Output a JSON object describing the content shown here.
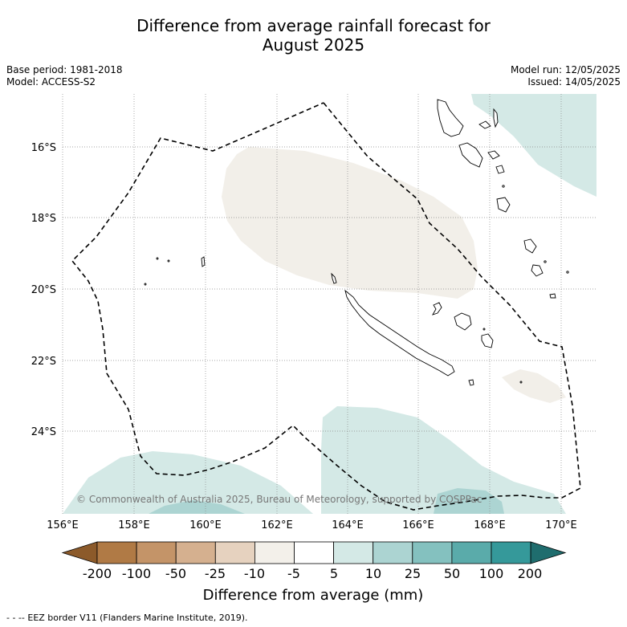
{
  "title": {
    "line1": "Difference from average rainfall forecast for",
    "line2": "August 2025"
  },
  "meta_left": {
    "base_period": "Base period: 1981-2018",
    "model": "Model: ACCESS-S2"
  },
  "meta_right": {
    "model_run": "Model run: 12/05/2025",
    "issued": "Issued: 14/05/2025"
  },
  "map": {
    "lat_labels": [
      "16°S",
      "18°S",
      "20°S",
      "22°S",
      "24°S"
    ],
    "lon_labels": [
      "156°E",
      "158°E",
      "160°E",
      "162°E",
      "164°E",
      "166°E",
      "168°E",
      "170°E"
    ],
    "copyright": "© Commonwealth of Australia 2025, Bureau of Meteorology, supported by COSPPac",
    "colors": {
      "dry_light": "#f2efe9",
      "wet_light": "#d4e9e6",
      "wet_medium": "#acd4d2",
      "eez_border": "#000000"
    }
  },
  "colorbar": {
    "ticks": [
      "-200",
      "-100",
      "-50",
      "-25",
      "-10",
      "-5",
      "5",
      "10",
      "25",
      "50",
      "100",
      "200"
    ],
    "colors": [
      "#8c5a2a",
      "#b07a45",
      "#c49468",
      "#d5b08f",
      "#e6d2bf",
      "#f3f0ea",
      "#ffffff",
      "#d4e9e6",
      "#acd4d2",
      "#84c1bf",
      "#5aabaa",
      "#35999a",
      "#1f6d6e"
    ],
    "label": "Difference from average (mm)"
  },
  "footer": "- -  -- EEZ border V11 (Flanders Marine Institute, 2019)."
}
